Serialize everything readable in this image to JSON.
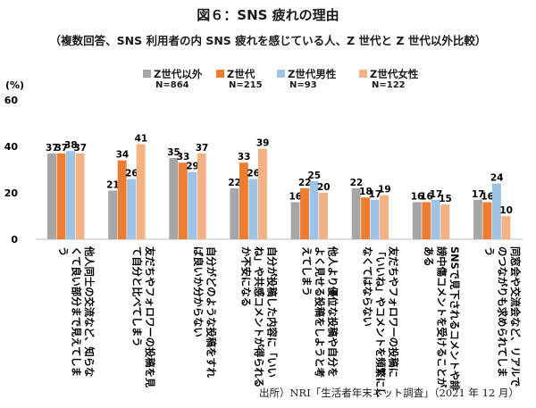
{
  "title": "図６：SNS 疲れの理由",
  "subtitle": "（複数回答、SNS 利用者の内 SNS 疲れを感じている人、Z 世代と Z 世代以外比較）",
  "source": "出所）NRI「生活者年末ネット調査」（2021 年 12 月）",
  "chart_data": {
    "type": "bar",
    "ylabel": "(%)",
    "ylim": [
      0,
      60
    ],
    "yticks": [
      0,
      20,
      40,
      60
    ],
    "grid": false,
    "legend_position": "top",
    "series": [
      {
        "name": "Z世代以外",
        "n": "N=864",
        "color": "#a6a6a6",
        "values": [
          37,
          21,
          35,
          22,
          16,
          22,
          16,
          17
        ]
      },
      {
        "name": "Z世代",
        "n": "N=215",
        "color": "#ed7d31",
        "values": [
          37,
          34,
          33,
          33,
          22,
          18,
          16,
          16
        ]
      },
      {
        "name": "Z世代男性",
        "n": "N=93",
        "color": "#9dc3e6",
        "values": [
          38,
          26,
          29,
          26,
          25,
          17,
          17,
          24
        ]
      },
      {
        "name": "Z世代女性",
        "n": "N=122",
        "color": "#f4b183",
        "values": [
          37,
          41,
          37,
          39,
          20,
          19,
          15,
          10
        ]
      }
    ],
    "categories": [
      {
        "label": "他人同士の交流など、知らなくて良い部分まで見えてしまう",
        "lines": [
          "他人同士の交流など、知らな",
          "くて良い部分まで見えてしま",
          "う"
        ]
      },
      {
        "label": "友だちやフォロワーの投稿を見て自分と比べてしまう",
        "lines": [
          "友だちやフォロワーの投稿を見",
          "て自分と比べてしまう"
        ]
      },
      {
        "label": "自分がどのような投稿をすれば良いか分からない",
        "lines": [
          "自分がどのような投稿をすれ",
          "ば良いか分からない"
        ]
      },
      {
        "label": "自分が投稿した内容に「いいね」や共感コメントが得られるか不安になる",
        "lines": [
          "自分が投稿した内容に「いい",
          "ね」や共感コメントが得られる",
          "か不安になる"
        ]
      },
      {
        "label": "他人より優位な投稿や自分をよく見せる投稿をしようと考えてしまう",
        "lines": [
          "他人より優位な投稿や自分を",
          "よく見せる投稿をしようと考",
          "えてしまう"
        ]
      },
      {
        "label": "友だちやフォロワーの投稿に「いいね」やコメントを頻繁にしなくてはならない",
        "lines": [
          "友だちやフォロワーの投稿に",
          "「いいね」やコメントを頻繁にし",
          "なくてはならない"
        ]
      },
      {
        "label": "SNSで見下されるコメントや誹謗中傷コメントを受けることがある",
        "lines": [
          "SNSで見下されるコメントや誹",
          "謗中傷コメントを受けることが",
          "ある"
        ]
      },
      {
        "label": "同窓会や交流会など、リアルでのつながりも求められてしまう",
        "lines": [
          "同窓会や交流会など、リアルで",
          "のつながりも求められてしま",
          "う"
        ]
      }
    ]
  }
}
